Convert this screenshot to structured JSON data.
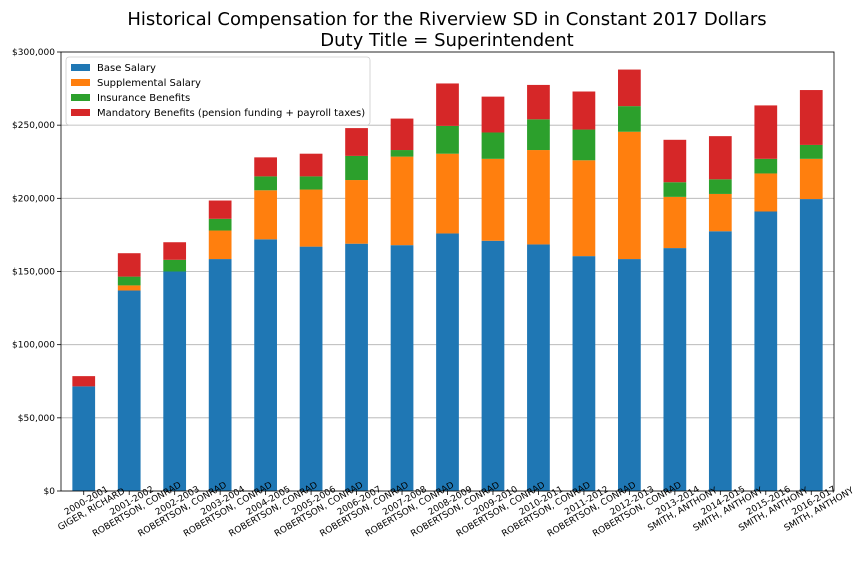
{
  "chart_data": {
    "type": "bar",
    "stacked": true,
    "title": "Historical Compensation for the Riverview SD in Constant 2017 Dollars",
    "subtitle": "Duty Title = Superintendent",
    "xlabel": "",
    "ylabel": "",
    "ylim": [
      0,
      300000
    ],
    "yticks": [
      "$0",
      "$50,000",
      "$100,000",
      "$150,000",
      "$200,000",
      "$250,000",
      "$300,000"
    ],
    "grid": "horizontal",
    "legend_position": "top-left",
    "categories": [
      [
        "2000-2001",
        "GIGER, RICHARD"
      ],
      [
        "2001-2002",
        "ROBERTSON, CONRAD"
      ],
      [
        "2002-2003",
        "ROBERTSON, CONRAD"
      ],
      [
        "2003-2004",
        "ROBERTSON, CONRAD"
      ],
      [
        "2004-2005",
        "ROBERTSON, CONRAD"
      ],
      [
        "2005-2006",
        "ROBERTSON, CONRAD"
      ],
      [
        "2006-2007",
        "ROBERTSON, CONRAD"
      ],
      [
        "2007-2008",
        "ROBERTSON, CONRAD"
      ],
      [
        "2008-2009",
        "ROBERTSON, CONRAD"
      ],
      [
        "2009-2010",
        "ROBERTSON, CONRAD"
      ],
      [
        "2010-2011",
        "ROBERTSON, CONRAD"
      ],
      [
        "2011-2012",
        "ROBERTSON, CONRAD"
      ],
      [
        "2012-2013",
        "ROBERTSON, CONRAD"
      ],
      [
        "2013-2014",
        "SMITH, ANTHONY"
      ],
      [
        "2014-2015",
        "SMITH, ANTHONY"
      ],
      [
        "2015-2016",
        "SMITH, ANTHONY"
      ],
      [
        "2016-2017",
        "SMITH, ANTHONY"
      ]
    ],
    "series": [
      {
        "name": "Base Salary",
        "color": "#1f77b4",
        "values": [
          71500,
          137000,
          150000,
          158500,
          172000,
          167000,
          169000,
          168000,
          176000,
          171000,
          168500,
          160500,
          158500,
          166000,
          177500,
          191000,
          199500
        ]
      },
      {
        "name": "Supplemental Salary",
        "color": "#ff7f0e",
        "values": [
          0,
          3500,
          0,
          19500,
          33500,
          39000,
          43500,
          60500,
          54500,
          56000,
          64500,
          65500,
          87000,
          35000,
          25500,
          26000,
          27500
        ]
      },
      {
        "name": "Insurance Benefits",
        "color": "#2ca02c",
        "values": [
          0,
          6000,
          8000,
          8000,
          9500,
          9000,
          16500,
          4500,
          19000,
          18000,
          21000,
          21000,
          17500,
          10000,
          10000,
          10000,
          9500
        ]
      },
      {
        "name": "Mandatory Benefits (pension funding + payroll taxes)",
        "color": "#d62728",
        "values": [
          7000,
          16000,
          12000,
          12500,
          13000,
          15500,
          19000,
          21500,
          29000,
          24500,
          23500,
          26000,
          25000,
          29000,
          29500,
          36500,
          37500
        ]
      }
    ]
  }
}
